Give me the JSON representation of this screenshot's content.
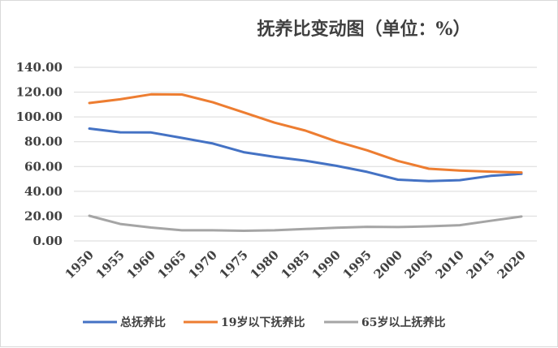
{
  "chart_data": {
    "type": "line",
    "title": "抚养比变动图（单位：%）",
    "xlabel": "",
    "ylabel": "",
    "x": [
      "1950",
      "1955",
      "1960",
      "1965",
      "1970",
      "1975",
      "1980",
      "1985",
      "1990",
      "1995",
      "2000",
      "2005",
      "2010",
      "2015",
      "2020"
    ],
    "yticks": [
      "0.00",
      "20.00",
      "40.00",
      "60.00",
      "80.00",
      "100.00",
      "120.00",
      "140.00"
    ],
    "ylim": [
      0,
      140
    ],
    "grid": true,
    "legend_position": "bottom",
    "series": [
      {
        "name": "总抚养比",
        "color": "#4472C4",
        "values": [
          90.6,
          87.6,
          87.5,
          83.1,
          78.6,
          71.6,
          67.8,
          64.7,
          60.6,
          55.7,
          49.4,
          48.2,
          49.0,
          52.5,
          54.1
        ]
      },
      {
        "name": "19岁以下抚养比",
        "color": "#ED7D31",
        "values": [
          111.2,
          114.2,
          118.2,
          118.1,
          111.8,
          103.6,
          95.4,
          89.0,
          80.3,
          73.1,
          64.5,
          58.2,
          56.8,
          55.9,
          55.2
        ]
      },
      {
        "name": "65岁以上抚养比",
        "color": "#A5A5A5",
        "values": [
          20.3,
          13.7,
          10.8,
          8.6,
          8.6,
          8.2,
          8.6,
          9.6,
          10.6,
          11.4,
          11.2,
          11.8,
          12.7,
          16.2,
          19.7
        ]
      }
    ]
  }
}
